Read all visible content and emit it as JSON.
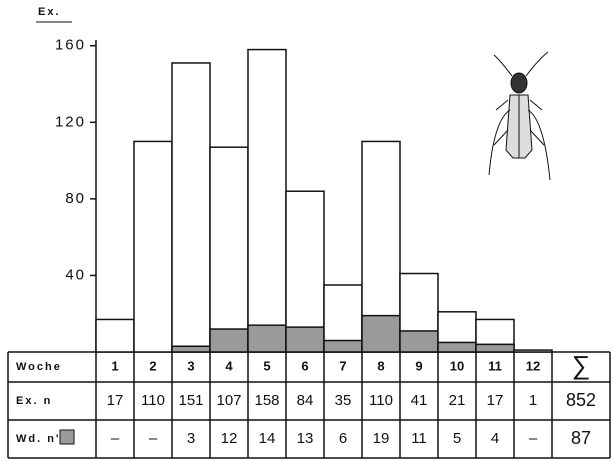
{
  "chart_data": {
    "type": "bar",
    "ylabel": "Ex.",
    "categories": [
      "1",
      "2",
      "3",
      "4",
      "5",
      "6",
      "7",
      "8",
      "9",
      "10",
      "11",
      "12"
    ],
    "series": [
      {
        "name": "Ex. n",
        "color": "#ffffff",
        "values": [
          17,
          110,
          151,
          107,
          158,
          84,
          35,
          110,
          41,
          21,
          17,
          1
        ]
      },
      {
        "name": "Wd. n'",
        "color": "#9a9a9a",
        "values": [
          null,
          null,
          3,
          12,
          14,
          13,
          6,
          19,
          11,
          5,
          4,
          null
        ],
        "value_labels": [
          "–",
          "–",
          "3",
          "12",
          "14",
          "13",
          "6",
          "19",
          "11",
          "5",
          "4",
          "–"
        ]
      }
    ],
    "ylim": [
      0,
      163
    ],
    "yticks": [
      40,
      80,
      120,
      160
    ],
    "row_header": "Woche",
    "sum_label": "∑",
    "totals": [
      852,
      87
    ]
  }
}
